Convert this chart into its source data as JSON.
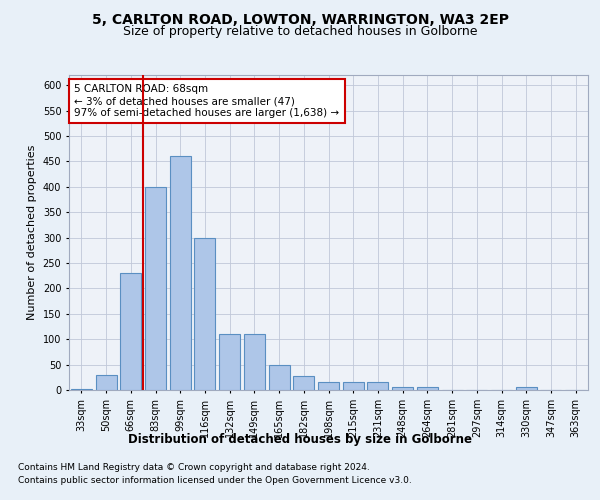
{
  "title1": "5, CARLTON ROAD, LOWTON, WARRINGTON, WA3 2EP",
  "title2": "Size of property relative to detached houses in Golborne",
  "xlabel": "Distribution of detached houses by size in Golborne",
  "ylabel": "Number of detached properties",
  "categories": [
    "33sqm",
    "50sqm",
    "66sqm",
    "83sqm",
    "99sqm",
    "116sqm",
    "132sqm",
    "149sqm",
    "165sqm",
    "182sqm",
    "198sqm",
    "215sqm",
    "231sqm",
    "248sqm",
    "264sqm",
    "281sqm",
    "297sqm",
    "314sqm",
    "330sqm",
    "347sqm",
    "363sqm"
  ],
  "bar_values": [
    1,
    30,
    230,
    400,
    460,
    300,
    110,
    110,
    50,
    28,
    15,
    15,
    15,
    5,
    5,
    0,
    0,
    0,
    5,
    0,
    0
  ],
  "bar_color": "#aec6e8",
  "bar_edge_color": "#5a8fc2",
  "bar_edge_width": 0.8,
  "vline_index": 2,
  "vline_color": "#cc0000",
  "annotation_text": "5 CARLTON ROAD: 68sqm\n← 3% of detached houses are smaller (47)\n97% of semi-detached houses are larger (1,638) →",
  "annotation_box_color": "#ffffff",
  "annotation_box_edge_color": "#cc0000",
  "annotation_fontsize": 7.5,
  "ylim": [
    0,
    620
  ],
  "yticks": [
    0,
    50,
    100,
    150,
    200,
    250,
    300,
    350,
    400,
    450,
    500,
    550,
    600
  ],
  "title1_fontsize": 10,
  "title2_fontsize": 9,
  "xlabel_fontsize": 8.5,
  "ylabel_fontsize": 8,
  "tick_fontsize": 7,
  "footer_line1": "Contains HM Land Registry data © Crown copyright and database right 2024.",
  "footer_line2": "Contains public sector information licensed under the Open Government Licence v3.0.",
  "footer_fontsize": 6.5,
  "bg_color": "#e8f0f8",
  "plot_bg_color": "#eef2f8"
}
